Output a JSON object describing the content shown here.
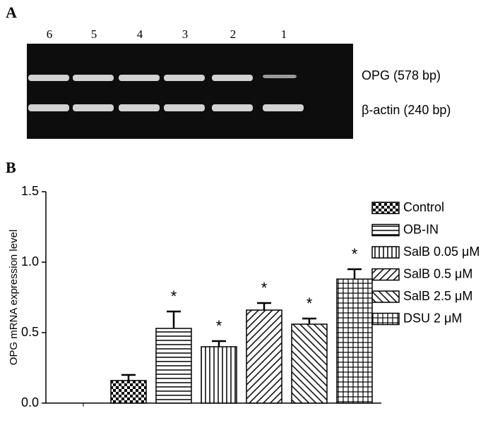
{
  "panel_a": {
    "label": "A",
    "lanes": [
      "6",
      "5",
      "4",
      "3",
      "2",
      "1"
    ],
    "bands": [
      "OPG (578 bp)",
      "β-actin (240 bp)"
    ]
  },
  "chart_data": {
    "type": "bar",
    "label": "B",
    "ylabel": "OPG mRNA expression level",
    "categories": [
      null,
      null,
      null,
      null,
      null,
      null
    ],
    "ylim": [
      0,
      1.5
    ],
    "yticks": [
      {
        "value": 0,
        "label": "0.0"
      },
      0.5,
      {
        "value": 1,
        "label": "1.0"
      },
      {
        "value": 1.5,
        "label": "1.5"
      }
    ],
    "series": [
      {
        "name": "Control",
        "color": "#000000",
        "pattern": "checker",
        "values": [
          0.16,
          null,
          null,
          null,
          null,
          null
        ],
        "errors": [
          0.04,
          null,
          null,
          null,
          null,
          null
        ]
      },
      {
        "name": "OB-IN",
        "color": "#000000",
        "pattern": "hlines",
        "values": [
          null,
          0.53,
          null,
          null,
          null,
          null
        ],
        "errors": [
          null,
          0.12,
          null,
          null,
          null,
          null
        ],
        "annotation": "*"
      },
      {
        "name": "SalB 0.05 μM",
        "color": "#000000",
        "pattern": "vlines",
        "values": [
          null,
          null,
          0.4,
          null,
          null,
          null
        ],
        "errors": [
          null,
          null,
          0.04,
          null,
          null,
          null
        ],
        "annotation": "*"
      },
      {
        "name": "SalB 0.5 μM",
        "color": "#000000",
        "pattern": "diag",
        "values": [
          null,
          null,
          null,
          0.66,
          null,
          null
        ],
        "errors": [
          null,
          null,
          null,
          0.05,
          null,
          null
        ],
        "annotation": "*"
      },
      {
        "name": "SalB 2.5 μM",
        "color": "#000000",
        "pattern": "antidiag",
        "values": [
          null,
          null,
          null,
          null,
          0.56,
          null
        ],
        "errors": [
          null,
          null,
          null,
          null,
          0.04,
          null
        ],
        "annotation": "*"
      },
      {
        "name": "DSU 2 μM",
        "color": "#000000",
        "pattern": "grid",
        "values": [
          null,
          null,
          null,
          null,
          null,
          0.88
        ],
        "errors": [
          null,
          null,
          null,
          null,
          null,
          0.07
        ],
        "annotation": "*"
      }
    ]
  }
}
